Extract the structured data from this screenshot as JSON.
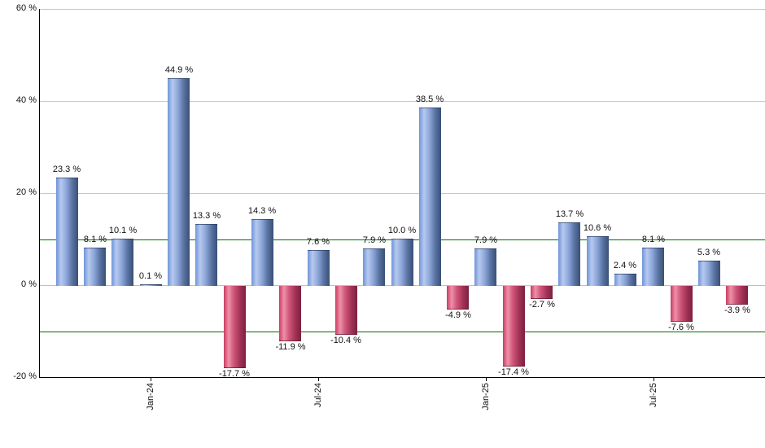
{
  "chart_data": {
    "type": "bar",
    "title": "",
    "xlabel": "",
    "ylabel": "",
    "unit": "%",
    "values": [
      23.3,
      8.1,
      10.1,
      0.1,
      44.9,
      13.3,
      -17.7,
      14.3,
      -11.9,
      7.6,
      -10.4,
      7.9,
      10.0,
      38.5,
      -4.9,
      7.9,
      -17.4,
      -2.7,
      13.7,
      10.6,
      2.4,
      8.1,
      -7.6,
      5.3,
      -3.9
    ],
    "bar_labels": [
      "23.3 %",
      "8.1 %",
      "10.1 %",
      "0.1 %",
      "44.9 %",
      "13.3 %",
      "-17.7 %",
      "14.3 %",
      "-11.9 %",
      "7.6 %",
      "-10.4 %",
      "7.9 %",
      "10.0 %",
      "38.5 %",
      "-4.9 %",
      "7.9 %",
      "-17.4 %",
      "-2.7 %",
      "13.7 %",
      "10.6 %",
      "2.4 %",
      "8.1 %",
      "-7.6 %",
      "5.3 %",
      "-3.9 %"
    ],
    "x_ticks": [
      {
        "index": 3,
        "label": "Jan-24"
      },
      {
        "index": 9,
        "label": "Jul-24"
      },
      {
        "index": 15,
        "label": "Jan-25"
      },
      {
        "index": 21,
        "label": "Jul-25"
      }
    ],
    "y_ticks": [
      {
        "value": 60,
        "label": "60 %"
      },
      {
        "value": 40,
        "label": "40 %"
      },
      {
        "value": 20,
        "label": "20 %"
      },
      {
        "value": 0,
        "label": "0 %"
      },
      {
        "value": -20,
        "label": "-20 %"
      }
    ],
    "ylim": [
      -20,
      60
    ],
    "threshold_lines": [
      10,
      -10
    ],
    "grid": true,
    "legend": false,
    "colors": {
      "positive_bar_gradient": [
        "#6e94da",
        "#b7c9ee",
        "#8fa9dc",
        "#56719f",
        "#3a5076"
      ],
      "negative_bar_gradient": [
        "#cc3a62",
        "#ec92a8",
        "#d05579",
        "#a03154",
        "#7c2040"
      ],
      "threshold_line": "#007000",
      "gridline": "#c8c8c8",
      "zero_line": "#c0c0c0",
      "axis": "#000000",
      "label_text": "#111111",
      "background": "#ffffff"
    }
  }
}
